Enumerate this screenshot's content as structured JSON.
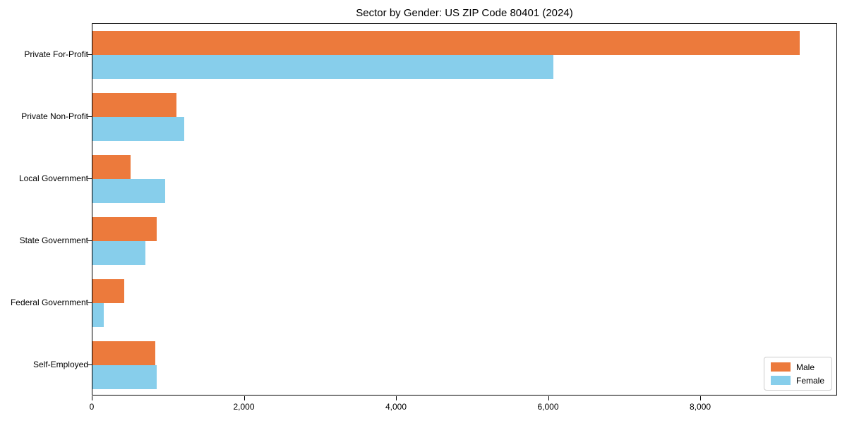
{
  "title": "Sector by Gender: US ZIP Code 80401 (2024)",
  "chart_data": {
    "type": "bar",
    "orientation": "horizontal",
    "title": "Sector by Gender: US ZIP Code 80401 (2024)",
    "xlabel": "",
    "ylabel": "",
    "categories": [
      "Private For-Profit",
      "Private Non-Profit",
      "Local Government",
      "State Government",
      "Federal Government",
      "Self-Employed"
    ],
    "series": [
      {
        "name": "Male",
        "color": "#EC7A3C",
        "values": [
          9300,
          1100,
          500,
          840,
          420,
          830
        ]
      },
      {
        "name": "Female",
        "color": "#87CEEB",
        "values": [
          6060,
          1210,
          960,
          700,
          150,
          840
        ]
      }
    ],
    "xlim": [
      0,
      9800
    ],
    "xticks": [
      0,
      2000,
      4000,
      6000,
      8000
    ],
    "xtick_labels": [
      "0",
      "2,000",
      "4,000",
      "6,000",
      "8,000"
    ],
    "grid": false,
    "legend": {
      "position": "lower right"
    }
  },
  "colors": {
    "male": "#EC7A3C",
    "female": "#87CEEB",
    "axis": "#000000",
    "legend_border": "#cccccc",
    "background": "#ffffff"
  }
}
